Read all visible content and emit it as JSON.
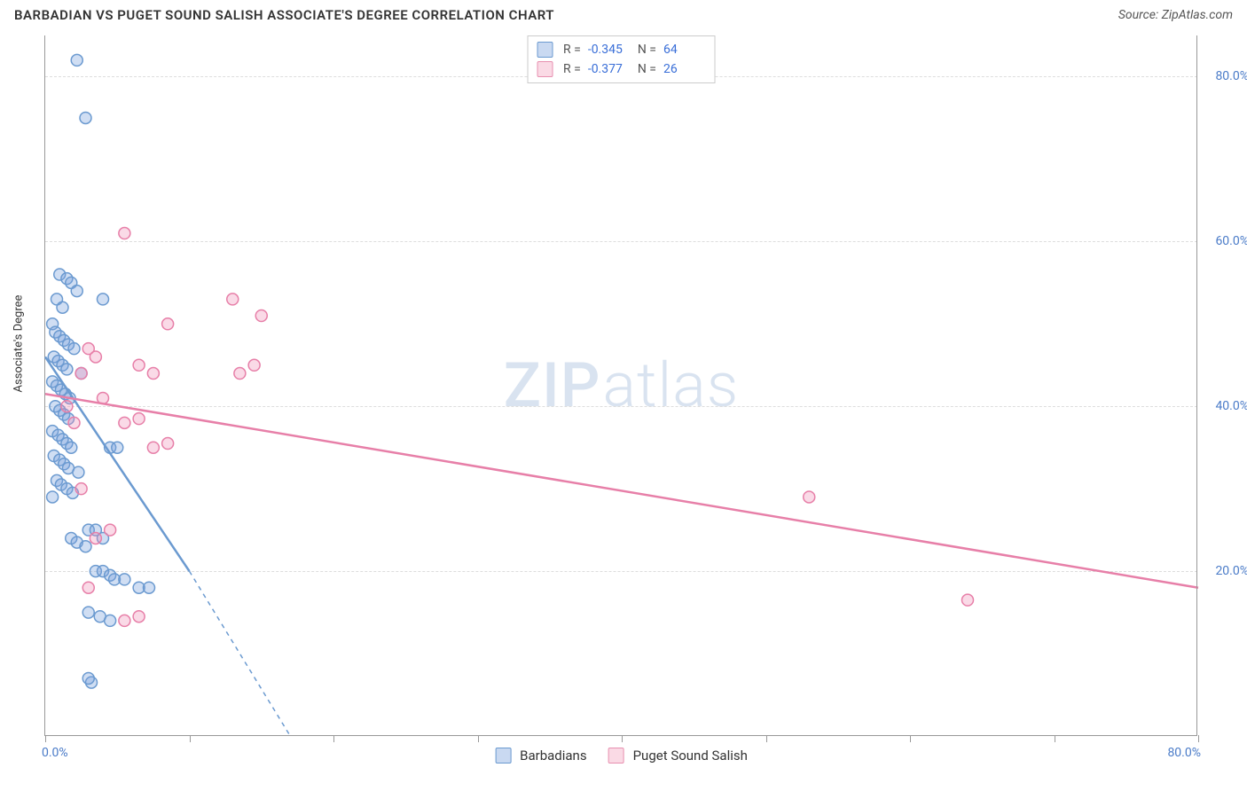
{
  "header": {
    "title": "BARBADIAN VS PUGET SOUND SALISH ASSOCIATE'S DEGREE CORRELATION CHART",
    "source": "Source: ZipAtlas.com"
  },
  "watermark": {
    "bold": "ZIP",
    "light": "atlas"
  },
  "chart": {
    "type": "scatter",
    "xlim": [
      0,
      80
    ],
    "ylim": [
      0,
      85
    ],
    "x_ticks": [
      0,
      10,
      20,
      30,
      40,
      50,
      60,
      70,
      80
    ],
    "y_gridlines": [
      20,
      40,
      60,
      80
    ],
    "x_axis_labels": {
      "left": "0.0%",
      "right": "80.0%"
    },
    "y_axis_labels": [
      {
        "value": 20,
        "label": "20.0%"
      },
      {
        "value": 40,
        "label": "40.0%"
      },
      {
        "value": 60,
        "label": "60.0%"
      },
      {
        "value": 80,
        "label": "80.0%"
      }
    ],
    "y_axis_title": "Associate's Degree",
    "background_color": "#ffffff",
    "grid_color": "#dddddd",
    "grid_dash": [
      4,
      4
    ],
    "marker_radius": 6.5,
    "marker_stroke_width": 1.5,
    "marker_fill_opacity": 0.35,
    "series": [
      {
        "name": "Barbadians",
        "color": "#6b9ad0",
        "fill": "rgba(120,160,220,0.35)",
        "R": "-0.345",
        "N": "64",
        "trend": {
          "x1": 0,
          "y1": 46,
          "x2_solid": 10,
          "y2_solid": 20,
          "x2_dash": 17,
          "y2_dash": 0,
          "width": 2.5
        },
        "points": [
          [
            2.2,
            82
          ],
          [
            2.8,
            75
          ],
          [
            1.0,
            56
          ],
          [
            1.5,
            55.5
          ],
          [
            1.8,
            55
          ],
          [
            2.2,
            54
          ],
          [
            0.8,
            53
          ],
          [
            1.2,
            52
          ],
          [
            4.0,
            53
          ],
          [
            0.5,
            50
          ],
          [
            0.7,
            49
          ],
          [
            1.0,
            48.5
          ],
          [
            1.3,
            48
          ],
          [
            1.6,
            47.5
          ],
          [
            2.0,
            47
          ],
          [
            0.6,
            46
          ],
          [
            0.9,
            45.5
          ],
          [
            1.2,
            45
          ],
          [
            1.5,
            44.5
          ],
          [
            2.5,
            44
          ],
          [
            0.5,
            43
          ],
          [
            0.8,
            42.5
          ],
          [
            1.1,
            42
          ],
          [
            1.4,
            41.5
          ],
          [
            1.7,
            41
          ],
          [
            0.7,
            40
          ],
          [
            1.0,
            39.5
          ],
          [
            1.3,
            39
          ],
          [
            1.6,
            38.5
          ],
          [
            0.5,
            37
          ],
          [
            0.9,
            36.5
          ],
          [
            1.2,
            36
          ],
          [
            1.5,
            35.5
          ],
          [
            1.8,
            35
          ],
          [
            4.5,
            35
          ],
          [
            5.0,
            35
          ],
          [
            0.6,
            34
          ],
          [
            1.0,
            33.5
          ],
          [
            1.3,
            33
          ],
          [
            1.6,
            32.5
          ],
          [
            2.3,
            32
          ],
          [
            0.8,
            31
          ],
          [
            1.1,
            30.5
          ],
          [
            1.5,
            30
          ],
          [
            1.9,
            29.5
          ],
          [
            0.5,
            29
          ],
          [
            3.0,
            25
          ],
          [
            3.5,
            25
          ],
          [
            4.0,
            24
          ],
          [
            1.8,
            24
          ],
          [
            2.2,
            23.5
          ],
          [
            2.8,
            23
          ],
          [
            3.5,
            20
          ],
          [
            4.0,
            20
          ],
          [
            4.5,
            19.5
          ],
          [
            4.8,
            19
          ],
          [
            5.5,
            19
          ],
          [
            6.5,
            18
          ],
          [
            7.2,
            18
          ],
          [
            3.0,
            15
          ],
          [
            3.8,
            14.5
          ],
          [
            4.5,
            14
          ],
          [
            3.2,
            6.5
          ],
          [
            3.0,
            7
          ]
        ]
      },
      {
        "name": "Puget Sound Salish",
        "color": "#e77fa8",
        "fill": "rgba(240,140,180,0.32)",
        "R": "-0.377",
        "N": "26",
        "trend": {
          "x1": 0,
          "y1": 41.5,
          "x2_solid": 80,
          "y2_solid": 18,
          "width": 2.5
        },
        "points": [
          [
            5.5,
            61
          ],
          [
            6.5,
            45
          ],
          [
            7.5,
            44
          ],
          [
            8.5,
            50
          ],
          [
            13.0,
            53
          ],
          [
            13.5,
            44
          ],
          [
            14.5,
            45
          ],
          [
            15.0,
            51
          ],
          [
            2.5,
            44
          ],
          [
            3.0,
            47
          ],
          [
            1.5,
            40
          ],
          [
            2.0,
            38
          ],
          [
            3.5,
            46
          ],
          [
            4.0,
            41
          ],
          [
            5.5,
            38
          ],
          [
            6.5,
            38.5
          ],
          [
            7.5,
            35
          ],
          [
            8.5,
            35.5
          ],
          [
            2.5,
            30
          ],
          [
            3.5,
            24
          ],
          [
            4.5,
            25
          ],
          [
            3.0,
            18
          ],
          [
            5.5,
            14
          ],
          [
            6.5,
            14.5
          ],
          [
            53.0,
            29
          ],
          [
            64.0,
            16.5
          ]
        ]
      }
    ]
  },
  "legend_bottom": [
    {
      "label": "Barbadians",
      "swatch": "sw-blue"
    },
    {
      "label": "Puget Sound Salish",
      "swatch": "sw-pink"
    }
  ]
}
